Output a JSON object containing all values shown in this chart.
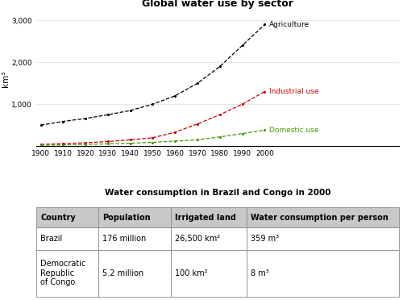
{
  "title": "Global water use by sector",
  "table_title": "Water consumption in Brazil and Congo in 2000",
  "ylabel": "km³",
  "years": [
    1900,
    1910,
    1920,
    1930,
    1940,
    1950,
    1960,
    1970,
    1980,
    1990,
    2000
  ],
  "agriculture": [
    500,
    590,
    660,
    750,
    850,
    1000,
    1200,
    1500,
    1900,
    2400,
    2900
  ],
  "industrial": [
    40,
    60,
    80,
    110,
    150,
    200,
    330,
    530,
    750,
    1000,
    1300
  ],
  "domestic": [
    20,
    30,
    40,
    55,
    70,
    90,
    120,
    150,
    220,
    300,
    380
  ],
  "agri_color": "#000000",
  "indus_color": "#cc0000",
  "domestic_color": "#449900",
  "agri_label": "Agriculture",
  "indus_label": "Industrial use",
  "domestic_label": "Domestic use",
  "ylim": [
    0,
    3200
  ],
  "yticks": [
    0,
    1000,
    2000,
    3000
  ],
  "ytick_labels": [
    "",
    "1,000",
    "2,000",
    "3,000"
  ],
  "table_headers": [
    "Country",
    "Population",
    "Irrigated land",
    "Water consumption per person"
  ],
  "table_rows": [
    [
      "Brazil",
      "176 million",
      "26,500 km²",
      "359 m³"
    ],
    [
      "Democratic\nRepublic\nof Congo",
      "5.2 million",
      "100 km²",
      "8 m³"
    ]
  ],
  "header_bg": "#c8c8c8",
  "row_bg": "#ffffff",
  "fig_bg": "#ffffff",
  "border_color": "#888888"
}
